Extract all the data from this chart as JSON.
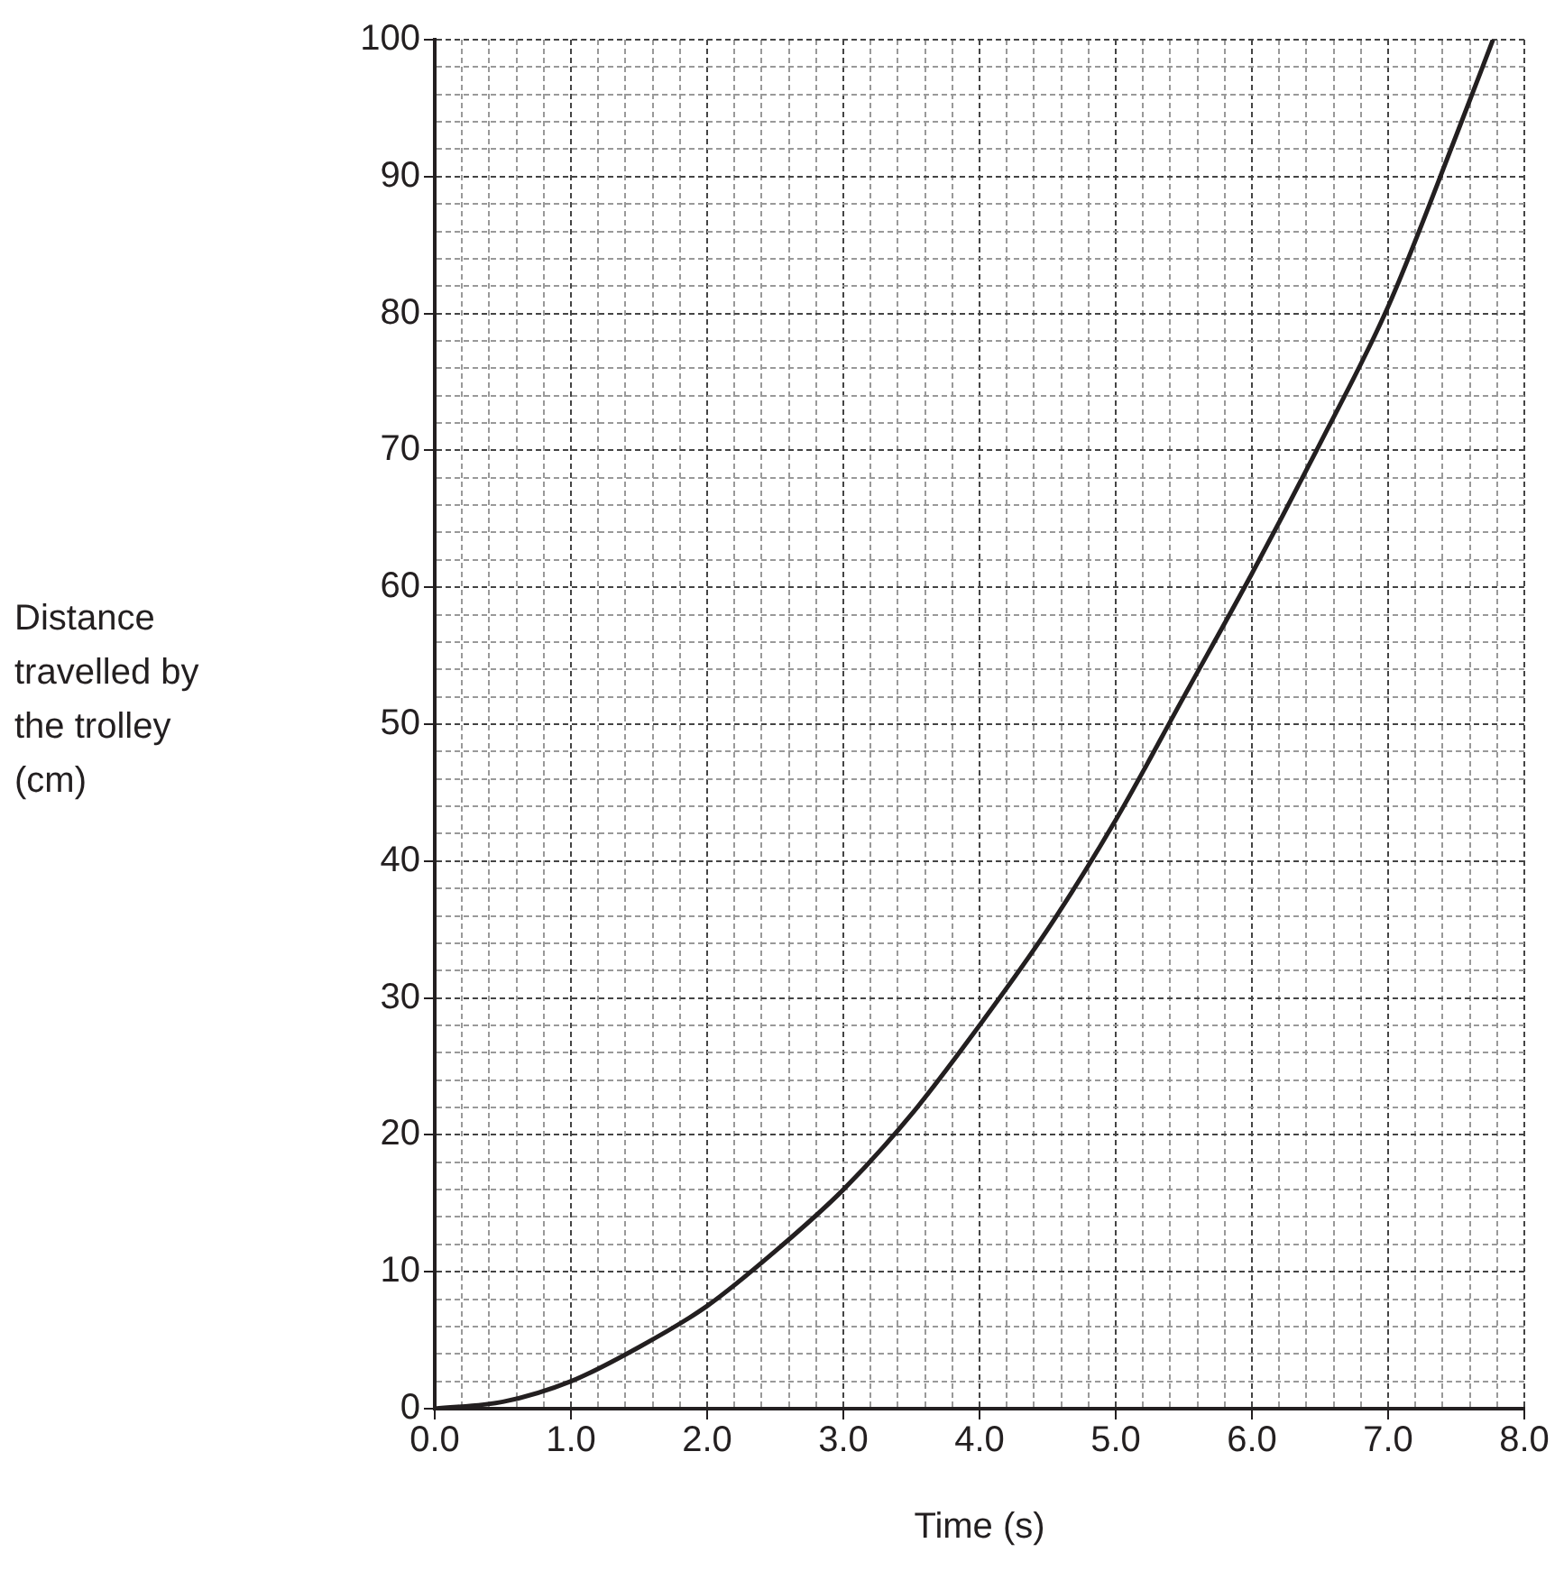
{
  "chart_data": {
    "type": "line",
    "xlabel": "Time (s)",
    "ylabel": "Distance travelled by the trolley (cm)",
    "x": [
      0,
      0.5,
      1,
      1.5,
      2,
      2.5,
      3,
      3.5,
      4,
      4.5,
      5,
      5.5,
      6,
      6.5,
      7,
      7.5,
      7.77
    ],
    "series": [
      {
        "color": "#231f20",
        "values": [
          0,
          0.5,
          2,
          4.5,
          7.5,
          11.5,
          16,
          21.5,
          28,
          35,
          43,
          52,
          61,
          70.5,
          80.5,
          93,
          100
        ]
      }
    ],
    "xlim": [
      0,
      8
    ],
    "ylim": [
      0,
      100
    ],
    "xticks": [
      {
        "value": 0,
        "label": "0.0"
      },
      {
        "value": 0.2,
        "label": null
      },
      {
        "value": 0.4,
        "label": null
      },
      {
        "value": 0.6,
        "label": null
      },
      {
        "value": 0.8,
        "label": null
      },
      {
        "value": 1,
        "label": "1.0"
      },
      {
        "value": 1.2,
        "label": null
      },
      {
        "value": 1.4,
        "label": null
      },
      {
        "value": 1.6,
        "label": null
      },
      {
        "value": 1.8,
        "label": null
      },
      {
        "value": 2,
        "label": "2.0"
      },
      {
        "value": 2.2,
        "label": null
      },
      {
        "value": 2.4,
        "label": null
      },
      {
        "value": 2.6,
        "label": null
      },
      {
        "value": 2.8,
        "label": null
      },
      {
        "value": 3,
        "label": "3.0"
      },
      {
        "value": 3.2,
        "label": null
      },
      {
        "value": 3.4,
        "label": null
      },
      {
        "value": 3.6,
        "label": null
      },
      {
        "value": 3.8,
        "label": null
      },
      {
        "value": 4,
        "label": "4.0"
      },
      {
        "value": 4.2,
        "label": null
      },
      {
        "value": 4.4,
        "label": null
      },
      {
        "value": 4.6,
        "label": null
      },
      {
        "value": 4.8,
        "label": null
      },
      {
        "value": 5,
        "label": "5.0"
      },
      {
        "value": 5.2,
        "label": null
      },
      {
        "value": 5.4,
        "label": null
      },
      {
        "value": 5.6,
        "label": null
      },
      {
        "value": 5.8,
        "label": null
      },
      {
        "value": 6,
        "label": "6.0"
      },
      {
        "value": 6.2,
        "label": null
      },
      {
        "value": 6.4,
        "label": null
      },
      {
        "value": 6.6,
        "label": null
      },
      {
        "value": 6.8,
        "label": null
      },
      {
        "value": 7,
        "label": "7.0"
      },
      {
        "value": 7.2,
        "label": null
      },
      {
        "value": 7.4,
        "label": null
      },
      {
        "value": 7.6,
        "label": null
      },
      {
        "value": 7.8,
        "label": null
      },
      {
        "value": 8,
        "label": "8.0"
      }
    ],
    "yticks": [
      0,
      {
        "value": 2,
        "label": null
      },
      {
        "value": 4,
        "label": null
      },
      {
        "value": 6,
        "label": null
      },
      {
        "value": 8,
        "label": null
      },
      10,
      {
        "value": 12,
        "label": null
      },
      {
        "value": 14,
        "label": null
      },
      {
        "value": 16,
        "label": null
      },
      {
        "value": 18,
        "label": null
      },
      20,
      {
        "value": 22,
        "label": null
      },
      {
        "value": 24,
        "label": null
      },
      {
        "value": 26,
        "label": null
      },
      {
        "value": 28,
        "label": null
      },
      30,
      {
        "value": 32,
        "label": null
      },
      {
        "value": 34,
        "label": null
      },
      {
        "value": 36,
        "label": null
      },
      {
        "value": 38,
        "label": null
      },
      40,
      {
        "value": 42,
        "label": null
      },
      {
        "value": 44,
        "label": null
      },
      {
        "value": 46,
        "label": null
      },
      {
        "value": 48,
        "label": null
      },
      50,
      {
        "value": 52,
        "label": null
      },
      {
        "value": 54,
        "label": null
      },
      {
        "value": 56,
        "label": null
      },
      {
        "value": 58,
        "label": null
      },
      60,
      {
        "value": 62,
        "label": null
      },
      {
        "value": 64,
        "label": null
      },
      {
        "value": 66,
        "label": null
      },
      {
        "value": 68,
        "label": null
      },
      70,
      {
        "value": 72,
        "label": null
      },
      {
        "value": 74,
        "label": null
      },
      {
        "value": 76,
        "label": null
      },
      {
        "value": 78,
        "label": null
      },
      80,
      {
        "value": 82,
        "label": null
      },
      {
        "value": 84,
        "label": null
      },
      {
        "value": 86,
        "label": null
      },
      {
        "value": 88,
        "label": null
      },
      90,
      {
        "value": 92,
        "label": null
      },
      {
        "value": 94,
        "label": null
      },
      {
        "value": 96,
        "label": null
      },
      {
        "value": 98,
        "label": null
      },
      100
    ],
    "grid": true,
    "legend": false,
    "marker": "none",
    "line_style": "solid"
  }
}
